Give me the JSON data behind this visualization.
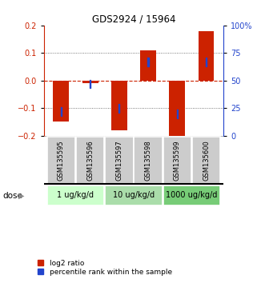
{
  "title": "GDS2924 / 15964",
  "samples": [
    "GSM135595",
    "GSM135596",
    "GSM135597",
    "GSM135598",
    "GSM135599",
    "GSM135600"
  ],
  "log2_ratio": [
    -0.148,
    -0.01,
    -0.18,
    0.11,
    -0.202,
    0.178
  ],
  "percentile_rank": [
    22,
    47,
    25,
    67,
    20,
    67
  ],
  "dose_groups": [
    {
      "label": "1 ug/kg/d",
      "cols": [
        0,
        1
      ],
      "color": "#ccffcc"
    },
    {
      "label": "10 ug/kg/d",
      "cols": [
        2,
        3
      ],
      "color": "#aaddaa"
    },
    {
      "label": "1000 ug/kg/d",
      "cols": [
        4,
        5
      ],
      "color": "#77cc77"
    }
  ],
  "dose_label": "dose",
  "ylim_left": [
    -0.2,
    0.2
  ],
  "ylim_right": [
    0,
    100
  ],
  "yticks_left": [
    -0.2,
    -0.1,
    0.0,
    0.1,
    0.2
  ],
  "yticks_right": [
    0,
    25,
    50,
    75,
    100
  ],
  "bar_color": "#cc2200",
  "blue_color": "#2244cc",
  "hline_color": "#cc2200",
  "dotline_color": "#555555",
  "sample_box_color": "#cccccc",
  "legend_red_label": "log2 ratio",
  "legend_blue_label": "percentile rank within the sample",
  "bar_width": 0.55
}
